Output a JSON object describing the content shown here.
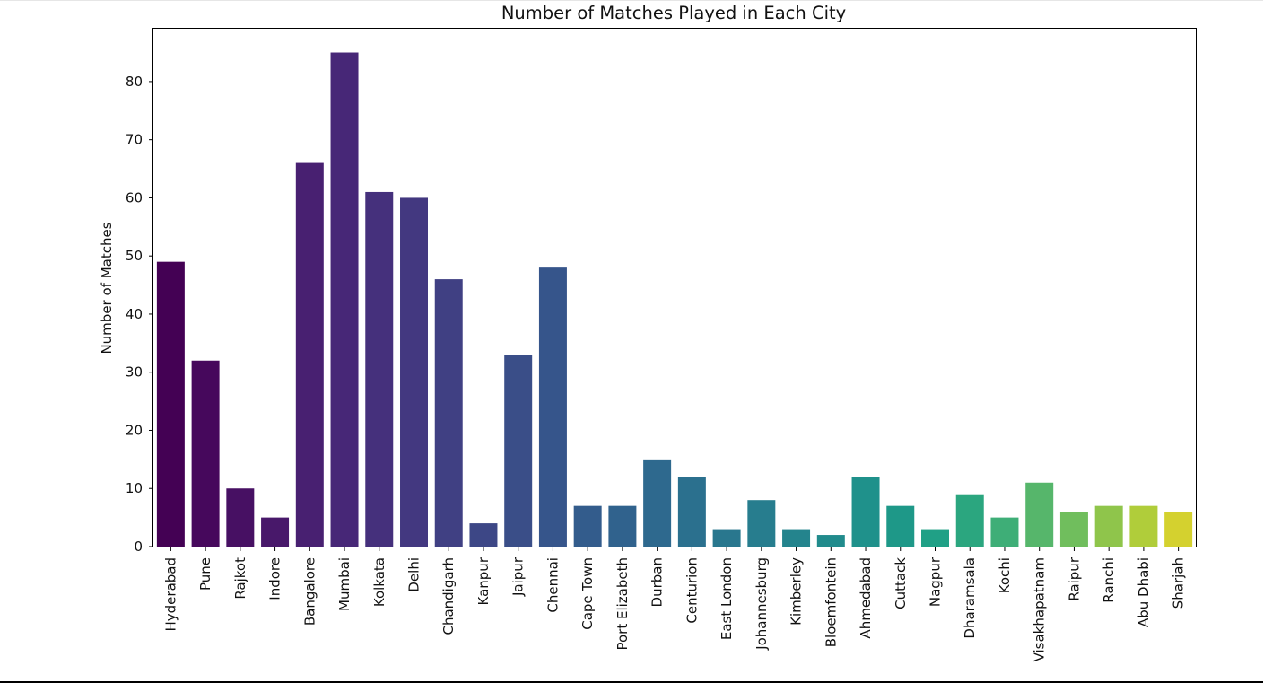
{
  "chart_data": {
    "type": "bar",
    "title": "Number of Matches Played in Each City",
    "xlabel": "",
    "ylabel": "Number of Matches",
    "ylim": [
      0,
      89.25
    ],
    "yticks": [
      0,
      10,
      20,
      30,
      40,
      50,
      60,
      70,
      80
    ],
    "grid": false,
    "legend": "none",
    "colormap": "viridis",
    "categories": [
      "Hyderabad",
      "Pune",
      "Rajkot",
      "Indore",
      "Bangalore",
      "Mumbai",
      "Kolkata",
      "Delhi",
      "Chandigarh",
      "Kanpur",
      "Jaipur",
      "Chennai",
      "Cape Town",
      "Port Elizabeth",
      "Durban",
      "Centurion",
      "East London",
      "Johannesburg",
      "Kimberley",
      "Bloemfontein",
      "Ahmedabad",
      "Cuttack",
      "Nagpur",
      "Dharamsala",
      "Kochi",
      "Visakhapatnam",
      "Raipur",
      "Ranchi",
      "Abu Dhabi",
      "Sharjah"
    ],
    "values": [
      49,
      32,
      10,
      5,
      66,
      85,
      61,
      60,
      46,
      4,
      33,
      48,
      7,
      7,
      15,
      12,
      3,
      8,
      3,
      2,
      12,
      7,
      3,
      9,
      5,
      11,
      6,
      7,
      7,
      6
    ],
    "colors": [
      "#440154",
      "#46085c",
      "#471063",
      "#48186a",
      "#482071",
      "#472777",
      "#45307c",
      "#433880",
      "#404083",
      "#3d4786",
      "#3a4e88",
      "#36558b",
      "#335c8c",
      "#30628d",
      "#2e698e",
      "#2b708e",
      "#29778e",
      "#277d8e",
      "#24848d",
      "#218b8c",
      "#1f918b",
      "#1e9888",
      "#20a086",
      "#2ba67f",
      "#3eae77",
      "#56b66b",
      "#70be5d",
      "#8fc54b",
      "#b0cd3a",
      "#d4d12f"
    ]
  }
}
